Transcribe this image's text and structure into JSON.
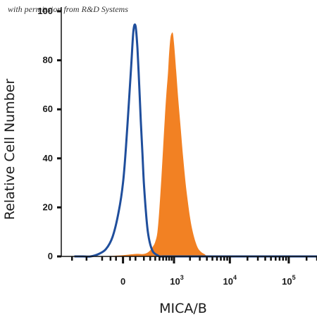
{
  "permission_note": "with permission from R&D Systems",
  "chart_data": {
    "type": "area",
    "xlabel": "MICA/B",
    "ylabel": "Relative Cell Number",
    "y_ticks": [
      0,
      20,
      40,
      60,
      80,
      100
    ],
    "ylim": [
      0,
      100
    ],
    "x_scale": "biexponential",
    "x_ticks": [
      {
        "base": "0",
        "exp": ""
      },
      {
        "base": "10",
        "exp": "3"
      },
      {
        "base": "10",
        "exp": "4"
      },
      {
        "base": "10",
        "exp": "5"
      }
    ],
    "grid": false,
    "colors": {
      "isotype_outline": "#1f4e9c",
      "stained_fill": "#f28123"
    },
    "series": [
      {
        "style": "outline",
        "color": "#1f4e9c",
        "x": [
          -900,
          -600,
          -400,
          -250,
          -150,
          -80,
          -30,
          0,
          20,
          40,
          60,
          80,
          100,
          120,
          140,
          160,
          180,
          200,
          230,
          260,
          300,
          350,
          400,
          450,
          500,
          600,
          700,
          1000,
          3000,
          10000,
          100000,
          300000
        ],
        "values": [
          0,
          0,
          0,
          1,
          3,
          8,
          18,
          30,
          45,
          62,
          78,
          92,
          94,
          85,
          70,
          55,
          42,
          30,
          18,
          10,
          5,
          2,
          1,
          0.5,
          0,
          0,
          0,
          0,
          0,
          0,
          0,
          0
        ]
      },
      {
        "style": "filled",
        "color": "#f28123",
        "x": [
          -900,
          -200,
          0,
          100,
          200,
          280,
          350,
          400,
          450,
          500,
          550,
          600,
          650,
          700,
          760,
          800,
          850,
          900,
          950,
          1000,
          1100,
          1200,
          1350,
          1500,
          1700,
          2000,
          2300,
          2700,
          3100,
          3600,
          4500,
          10000,
          100000,
          300000
        ],
        "values": [
          0,
          0,
          0.5,
          1,
          1,
          2,
          4,
          6,
          10,
          20,
          32,
          44,
          56,
          66,
          75,
          83,
          89,
          91,
          91,
          87,
          76,
          65,
          52,
          40,
          28,
          16,
          9,
          4,
          2,
          1,
          0,
          0,
          0,
          0
        ]
      }
    ]
  }
}
